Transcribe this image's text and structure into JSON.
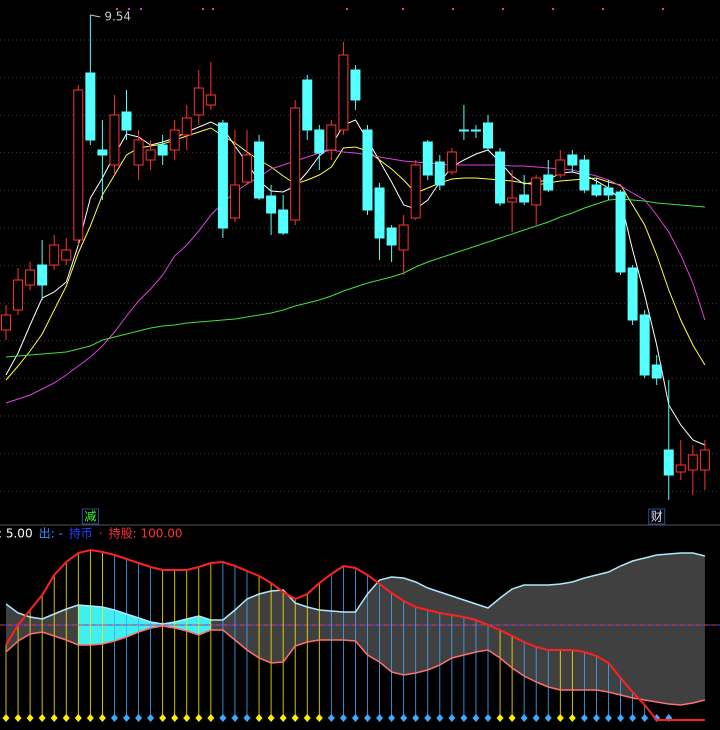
{
  "chart_data": [
    {
      "type": "candlestick",
      "open": [
        6.39,
        6.59,
        6.84,
        7.04,
        7.04,
        7.09,
        7.29,
        8.96,
        8.19,
        8.04,
        8.57,
        8.04,
        8.09,
        8.24,
        8.19,
        8.34,
        8.54,
        8.64,
        8.46,
        7.51,
        7.87,
        8.27,
        7.73,
        7.59,
        7.49,
        8.89,
        8.39,
        8.19,
        8.39,
        8.99,
        8.39,
        7.81,
        7.41,
        7.19,
        7.51,
        8.27,
        8.07,
        7.97,
        8.39,
        8.39,
        8.46,
        8.17,
        7.67,
        7.74,
        7.64,
        7.94,
        7.94,
        8.14,
        8.09,
        7.84,
        7.81,
        7.77,
        7.01,
        6.54,
        6.04,
        5.19,
        4.97,
        4.99,
        4.99
      ],
      "high": [
        6.64,
        7.01,
        7.07,
        7.29,
        7.34,
        7.31,
        8.84,
        9.54,
        8.49,
        8.74,
        8.79,
        8.39,
        8.29,
        8.34,
        8.49,
        8.64,
        8.99,
        9.07,
        8.49,
        8.39,
        8.39,
        8.34,
        7.84,
        7.74,
        8.69,
        8.94,
        8.44,
        8.49,
        9.27,
        9.04,
        8.44,
        7.86,
        7.44,
        7.54,
        8.09,
        8.29,
        8.14,
        8.21,
        8.64,
        8.44,
        8.54,
        8.21,
        7.99,
        7.94,
        7.94,
        8.09,
        8.19,
        8.19,
        8.14,
        7.91,
        7.89,
        7.79,
        7.04,
        6.59,
        6.14,
        5.89,
        5.29,
        5.24,
        5.29
      ],
      "low": [
        6.29,
        6.54,
        6.79,
        6.69,
        6.99,
        7.04,
        7.24,
        8.24,
        7.69,
        7.94,
        8.29,
        7.89,
        7.99,
        8.04,
        8.09,
        8.19,
        8.44,
        8.59,
        7.31,
        7.47,
        7.84,
        7.69,
        7.34,
        7.34,
        7.44,
        8.29,
        7.99,
        8.09,
        8.34,
        8.59,
        7.54,
        7.09,
        7.07,
        6.94,
        7.49,
        7.89,
        7.79,
        7.94,
        8.29,
        8.31,
        8.19,
        7.63,
        7.37,
        7.64,
        7.44,
        7.77,
        7.91,
        7.97,
        7.76,
        7.72,
        7.69,
        6.94,
        6.44,
        5.91,
        5.84,
        4.69,
        4.89,
        4.74,
        4.79
      ],
      "close": [
        6.54,
        6.89,
        6.99,
        6.84,
        7.24,
        7.19,
        8.79,
        8.29,
        8.14,
        8.54,
        8.39,
        8.29,
        8.19,
        8.14,
        8.39,
        8.51,
        8.81,
        8.74,
        7.41,
        7.84,
        8.14,
        7.71,
        7.56,
        7.36,
        8.61,
        8.39,
        8.16,
        8.44,
        9.14,
        8.69,
        7.59,
        7.31,
        7.24,
        7.44,
        8.04,
        7.94,
        7.84,
        8.17,
        8.39,
        8.39,
        8.21,
        7.66,
        7.71,
        7.67,
        7.91,
        7.79,
        8.09,
        8.04,
        7.79,
        7.74,
        7.74,
        6.97,
        6.49,
        5.94,
        5.91,
        4.94,
        5.04,
        5.14,
        5.19
      ],
      "up_color": "#ff3232",
      "down_color": "#54ffff",
      "ylim": [
        4.49,
        9.69
      ],
      "ma": [
        {
          "color": "#ffffff",
          "values": [
            5.94,
            6.16,
            6.44,
            6.71,
            6.77,
            6.87,
            7.24,
            7.71,
            7.91,
            8.14,
            8.35,
            8.32,
            8.24,
            8.27,
            8.31,
            8.37,
            8.42,
            8.47,
            8.41,
            8.23,
            8.06,
            7.88,
            7.78,
            7.77,
            7.83,
            7.97,
            8.13,
            8.23,
            8.44,
            8.49,
            8.29,
            8.08,
            7.87,
            7.64,
            7.6,
            7.69,
            7.87,
            8.02,
            8.09,
            8.15,
            8.19,
            8.07,
            7.93,
            7.85,
            7.87,
            7.89,
            7.96,
            7.97,
            7.94,
            7.88,
            7.81,
            7.69,
            7.19,
            6.74,
            6.24,
            5.64,
            5.44,
            5.29,
            5.24
          ]
        },
        {
          "color": "#ffff40",
          "values": [
            5.89,
            6.03,
            6.18,
            6.35,
            6.59,
            6.83,
            7.16,
            7.43,
            7.74,
            7.94,
            8.14,
            8.21,
            8.23,
            8.25,
            8.29,
            8.33,
            8.37,
            8.41,
            8.33,
            8.26,
            8.17,
            8.09,
            8.02,
            7.93,
            7.85,
            7.89,
            7.94,
            8.02,
            8.21,
            8.22,
            8.18,
            8.09,
            8.0,
            7.89,
            7.76,
            7.81,
            7.86,
            7.9,
            7.91,
            7.91,
            7.9,
            7.89,
            7.88,
            7.86,
            7.84,
            7.86,
            7.88,
            7.89,
            7.9,
            7.91,
            7.87,
            7.84,
            7.64,
            7.44,
            7.14,
            6.79,
            6.49,
            6.24,
            6.04
          ]
        },
        {
          "color": "#e040e0",
          "values": [
            5.66,
            5.7,
            5.74,
            5.8,
            5.86,
            5.94,
            6.03,
            6.12,
            6.23,
            6.37,
            6.53,
            6.68,
            6.8,
            6.94,
            7.13,
            7.24,
            7.38,
            7.54,
            7.66,
            7.77,
            7.85,
            7.92,
            8.0,
            8.04,
            8.08,
            8.12,
            8.16,
            8.19,
            8.17,
            8.16,
            8.14,
            8.12,
            8.1,
            8.08,
            8.07,
            8.06,
            8.05,
            8.04,
            8.04,
            8.04,
            8.04,
            8.04,
            8.03,
            8.03,
            8.02,
            8.01,
            8.0,
            7.99,
            7.96,
            7.93,
            7.89,
            7.83,
            7.76,
            7.69,
            7.54,
            7.37,
            7.14,
            6.86,
            6.49
          ]
        },
        {
          "color": "#40e040",
          "values": [
            6.12,
            6.13,
            6.14,
            6.15,
            6.16,
            6.17,
            6.2,
            6.23,
            6.29,
            6.32,
            6.35,
            6.38,
            6.41,
            6.43,
            6.44,
            6.46,
            6.47,
            6.48,
            6.49,
            6.5,
            6.52,
            6.54,
            6.56,
            6.59,
            6.63,
            6.66,
            6.69,
            6.73,
            6.78,
            6.82,
            6.86,
            6.89,
            6.92,
            6.96,
            7.02,
            7.07,
            7.11,
            7.15,
            7.19,
            7.23,
            7.27,
            7.31,
            7.35,
            7.39,
            7.43,
            7.47,
            7.52,
            7.56,
            7.61,
            7.65,
            7.69,
            7.7,
            7.69,
            7.68,
            7.66,
            7.65,
            7.64,
            7.63,
            7.62
          ]
        }
      ],
      "annotations": [
        {
          "text": "9.54",
          "index": 7,
          "color": "#c8c8c8"
        }
      ],
      "events": [
        {
          "label": "减",
          "index": 7,
          "color": "#30ff30"
        },
        {
          "label": "财",
          "index": 54,
          "color": "#e0e0ff"
        }
      ]
    },
    {
      "type": "indicator",
      "ylim": [
        -95,
        95
      ],
      "legend": [
        {
          "label": ": 5.00",
          "color": "#ffffff"
        },
        {
          "label": "出: -",
          "color": "#3090ff"
        },
        {
          "label": "持币",
          "color": "#2040ff"
        },
        {
          "label": "·",
          "color": "#ff3030"
        },
        {
          "label": "持股: 100.00",
          "color": "#ff3030"
        }
      ],
      "upper_band": {
        "color": "#b0e8ff",
        "values": [
          21,
          12,
          8,
          6,
          11,
          16,
          20,
          19,
          18,
          15,
          11,
          7,
          3,
          1,
          3,
          6,
          9,
          5,
          5,
          15,
          26,
          31,
          34,
          35,
          22,
          18,
          15,
          14,
          13,
          13,
          31,
          45,
          48,
          47,
          43,
          37,
          33,
          29,
          25,
          21,
          17,
          27,
          36,
          40,
          40,
          40,
          41,
          43,
          47,
          50,
          53,
          59,
          64,
          67,
          70,
          71,
          72,
          72,
          69
        ]
      },
      "lower_band": {
        "color": "#ff7070",
        "values": [
          -27,
          -16,
          -9,
          -7,
          -11,
          -15,
          -20,
          -20,
          -19,
          -16,
          -12,
          -7,
          -3,
          -1,
          -3,
          -6,
          -10,
          -5,
          -5,
          -15,
          -25,
          -33,
          -38,
          -37,
          -21,
          -17,
          -15,
          -15,
          -15,
          -16,
          -30,
          -37,
          -47,
          -50,
          -48,
          -45,
          -40,
          -33,
          -30,
          -27,
          -25,
          -33,
          -43,
          -51,
          -57,
          -62,
          -65,
          -65,
          -65,
          -65,
          -67,
          -70,
          -73,
          -75,
          -77,
          -79,
          -80,
          -78,
          -75
        ]
      },
      "band_fill": "#404040",
      "highlight_color": "#40f0f0",
      "highlight_range": [
        6,
        17
      ],
      "line": {
        "color": "#ff2020",
        "values": [
          -20,
          0,
          15,
          30,
          50,
          63,
          72,
          75,
          73,
          70,
          66,
          62,
          58,
          55,
          55,
          55,
          58,
          62,
          63,
          59,
          54,
          49,
          42,
          33,
          26,
          31,
          42,
          51,
          59,
          57,
          50,
          41,
          32,
          24,
          18,
          15,
          12,
          10,
          8,
          5,
          0,
          -5,
          -11,
          -17,
          -22,
          -25,
          -25,
          -25,
          -27,
          -31,
          -38,
          -53,
          -67,
          -80,
          -95,
          -95,
          -95,
          -95,
          -95
        ]
      },
      "marker_colors": [
        "#ffee00",
        "#ffee00",
        "#ffee00",
        "#ffee00",
        "#ffee00",
        "#ffee00",
        "#ffee00",
        "#ffee00",
        "#ffee00",
        "#3fa9ff",
        "#3fa9ff",
        "#3fa9ff",
        "#3fa9ff",
        "#ffee00",
        "#ffee00",
        "#ffee00",
        "#ffee00",
        "#ffee00",
        "#3fa9ff",
        "#3fa9ff",
        "#3fa9ff",
        "#ffee00",
        "#ffee00",
        "#ffee00",
        "#ffee00",
        "#ffee00",
        "#ffee00",
        "#3fa9ff",
        "#3fa9ff",
        "#3fa9ff",
        "#3fa9ff",
        "#3fa9ff",
        "#3fa9ff",
        "#3fa9ff",
        "#3fa9ff",
        "#3fa9ff",
        "#3fa9ff",
        "#3fa9ff",
        "#3fa9ff",
        "#3fa9ff",
        "#3fa9ff",
        "#ffee00",
        "#ffee00",
        "#3fa9ff",
        "#3fa9ff",
        "#3fa9ff",
        "#ffee00",
        "#ffee00",
        "#3fa9ff",
        "#3fa9ff",
        "#3fa9ff",
        "#3fa9ff",
        "#3fa9ff",
        "#3fa9ff",
        "#3fa9ff",
        "#3fa9ff",
        null,
        null,
        null
      ]
    }
  ]
}
